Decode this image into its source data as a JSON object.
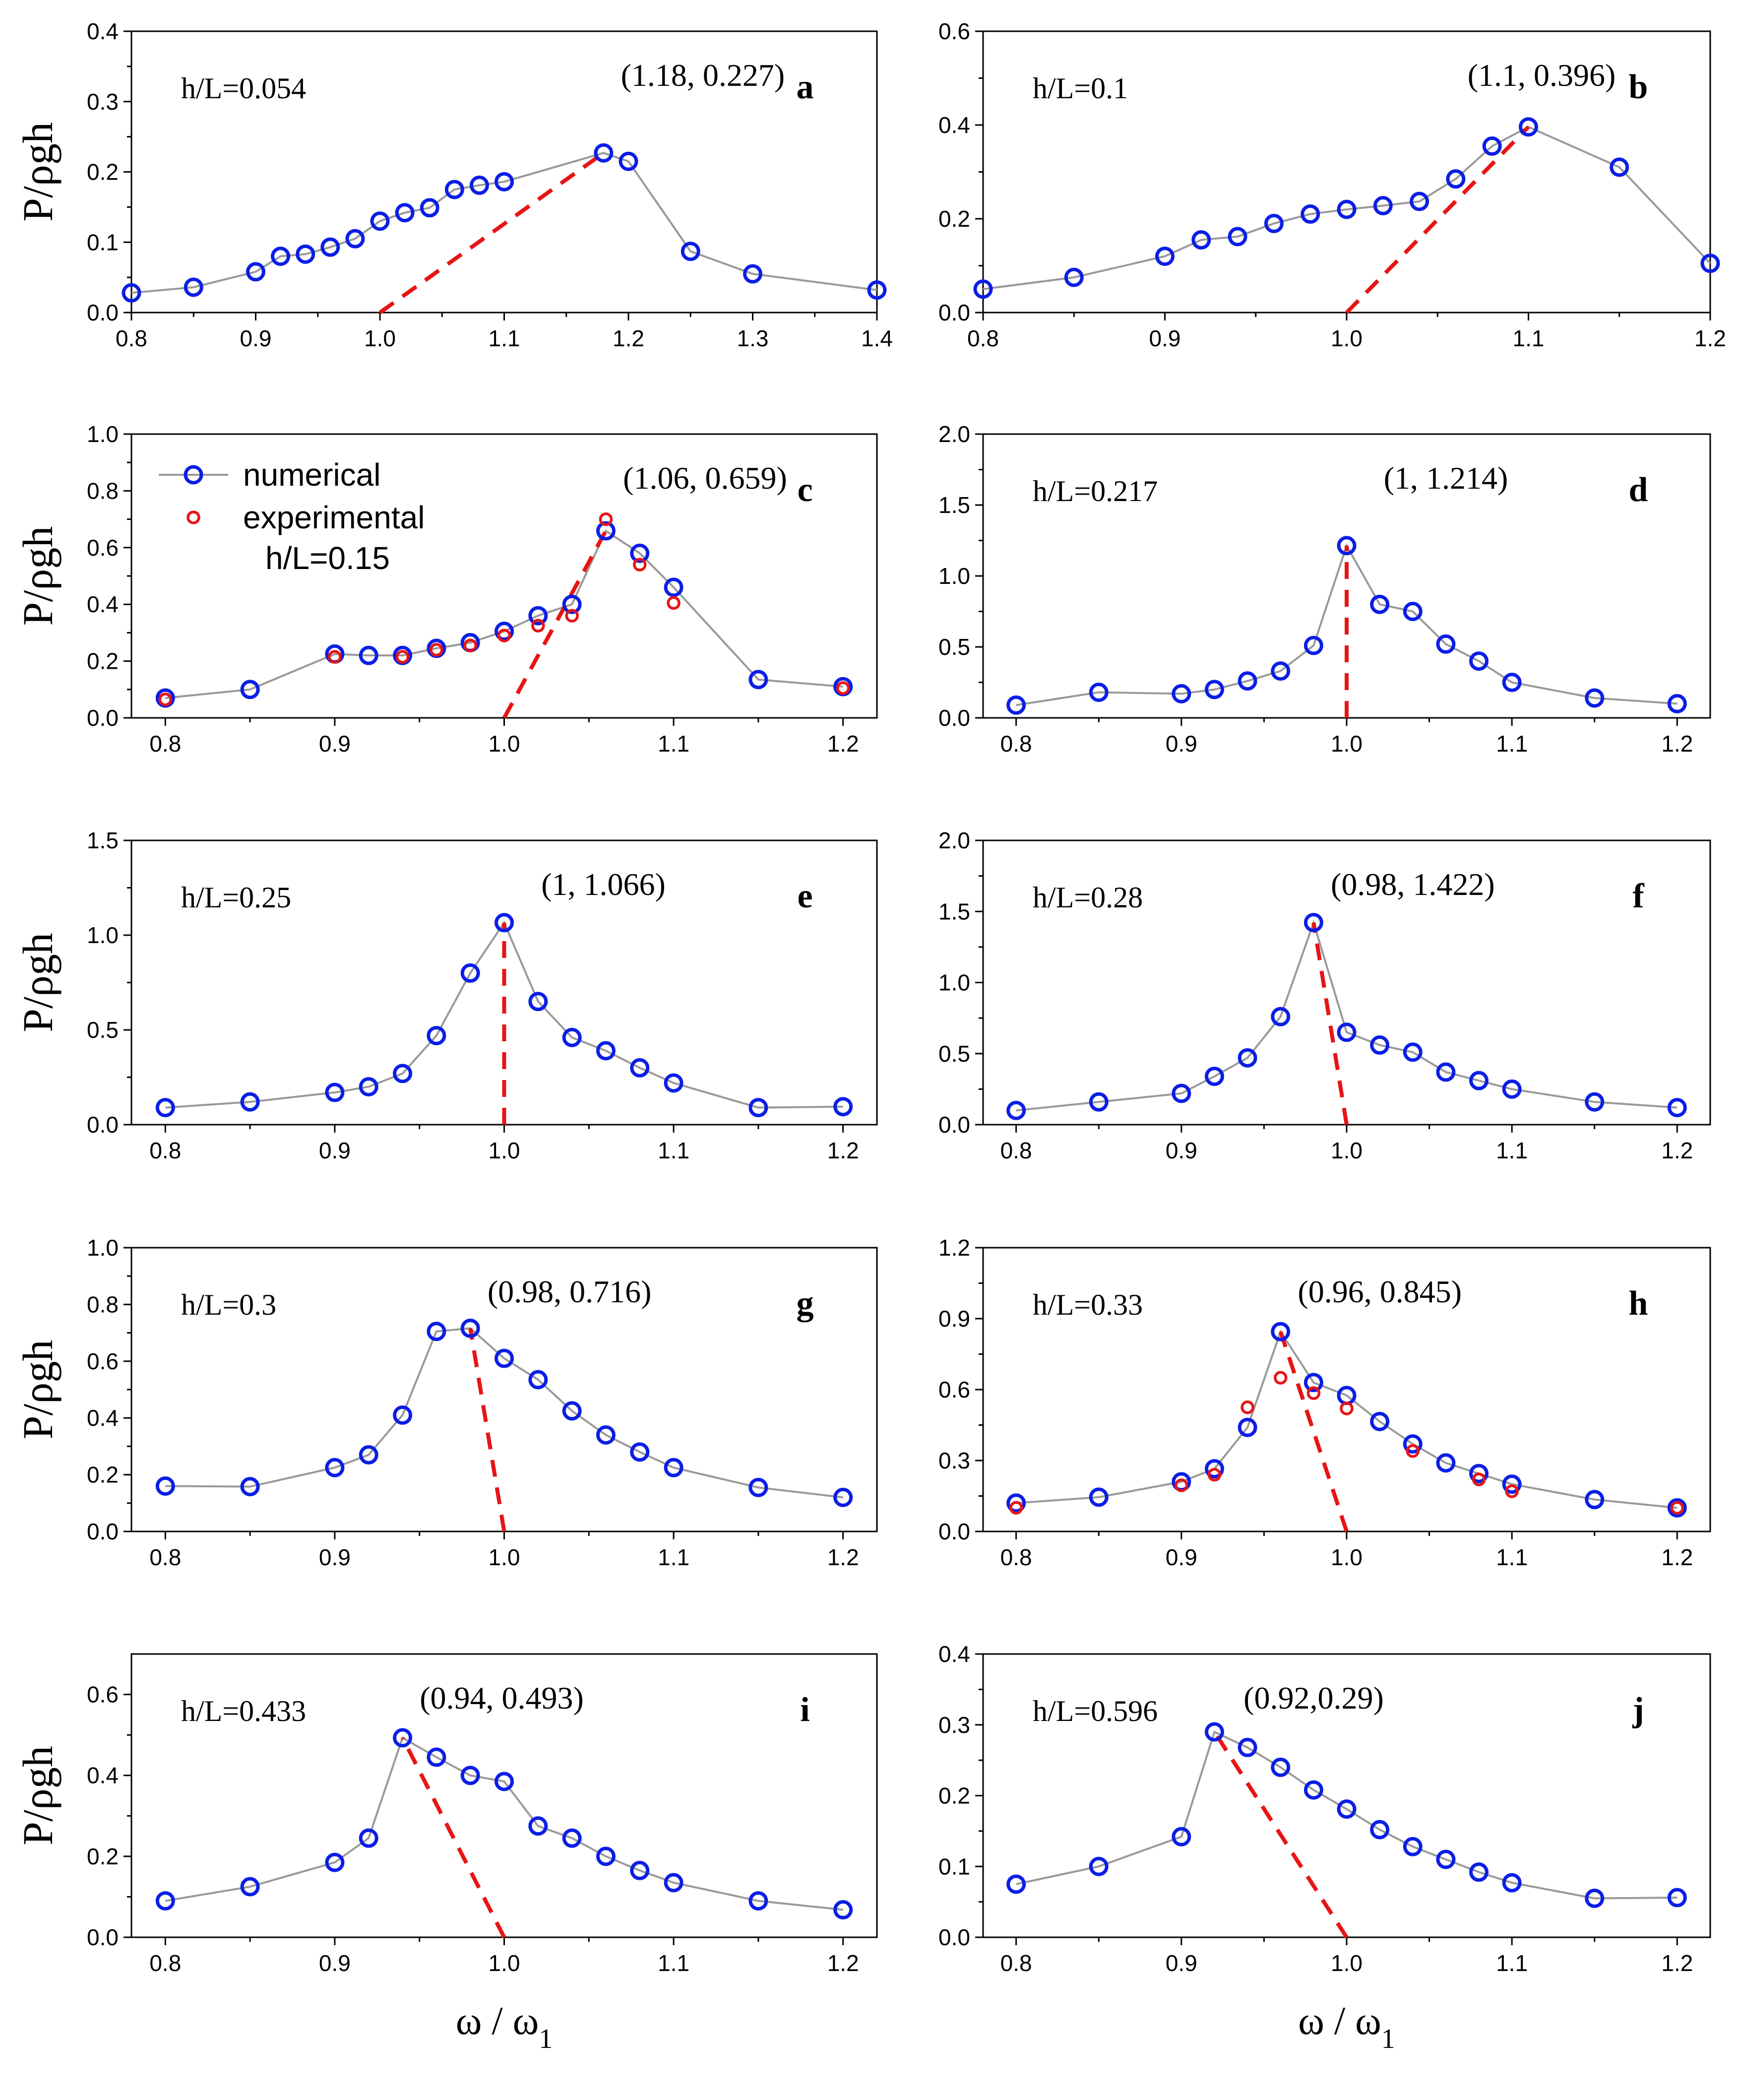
{
  "chart_data": [
    {
      "id": "a",
      "type": "line",
      "panel_label": "a",
      "hl_text": "h/L=0.054",
      "annotation": "(1.18, 0.227)",
      "ylabel": "P/ρgh",
      "xlim": [
        0.8,
        1.4
      ],
      "ylim": [
        0.0,
        0.4
      ],
      "xticks": [
        0.8,
        0.9,
        1.0,
        1.1,
        1.2,
        1.3,
        1.4
      ],
      "yticks": [
        0.0,
        0.1,
        0.2,
        0.3,
        0.4
      ],
      "xtick_labels": [
        "0.8",
        "0.9",
        "1.0",
        "1.1",
        "1.2",
        "1.3",
        "1.4"
      ],
      "ytick_labels": [
        "0.0",
        "0.1",
        "0.2",
        "0.3",
        "0.4"
      ],
      "series": [
        {
          "name": "numerical",
          "x": [
            0.8,
            0.85,
            0.9,
            0.92,
            0.94,
            0.96,
            0.98,
            1.0,
            1.02,
            1.04,
            1.06,
            1.08,
            1.1,
            1.18,
            1.2,
            1.25,
            1.3,
            1.4
          ],
          "y": [
            0.028,
            0.036,
            0.058,
            0.08,
            0.083,
            0.093,
            0.105,
            0.13,
            0.142,
            0.149,
            0.175,
            0.181,
            0.186,
            0.227,
            0.215,
            0.087,
            0.055,
            0.032
          ]
        }
      ],
      "dashed_line": {
        "x": [
          1.0,
          1.18
        ],
        "y": [
          0.0,
          0.227
        ]
      }
    },
    {
      "id": "b",
      "type": "line",
      "panel_label": "b",
      "hl_text": "h/L=0.1",
      "annotation": "(1.1, 0.396)",
      "ylabel": "",
      "xlim": [
        0.8,
        1.2
      ],
      "ylim": [
        0.0,
        0.6
      ],
      "xticks": [
        0.8,
        0.9,
        1.0,
        1.1,
        1.2
      ],
      "yticks": [
        0.0,
        0.2,
        0.4,
        0.6
      ],
      "xtick_labels": [
        "0.8",
        "0.9",
        "1.0",
        "1.1",
        "1.2"
      ],
      "ytick_labels": [
        "0.0",
        "0.2",
        "0.4",
        "0.6"
      ],
      "series": [
        {
          "name": "numerical",
          "x": [
            0.8,
            0.85,
            0.9,
            0.92,
            0.94,
            0.96,
            0.98,
            1.0,
            1.02,
            1.04,
            1.06,
            1.08,
            1.1,
            1.15,
            1.2
          ],
          "y": [
            0.05,
            0.075,
            0.12,
            0.155,
            0.162,
            0.19,
            0.21,
            0.22,
            0.228,
            0.237,
            0.285,
            0.355,
            0.396,
            0.31,
            0.105
          ]
        }
      ],
      "dashed_line": {
        "x": [
          1.0,
          1.1
        ],
        "y": [
          0.0,
          0.396
        ]
      }
    },
    {
      "id": "c",
      "type": "line",
      "panel_label": "c",
      "hl_text": "h/L=0.15",
      "annotation": "(1.06, 0.659)",
      "ylabel": "P/ρgh",
      "xlim": [
        0.78,
        1.22
      ],
      "ylim": [
        0.0,
        1.0
      ],
      "xticks": [
        0.8,
        0.9,
        1.0,
        1.1,
        1.2
      ],
      "yticks": [
        0.0,
        0.2,
        0.4,
        0.6,
        0.8,
        1.0
      ],
      "xtick_labels": [
        "0.8",
        "0.9",
        "1.0",
        "1.1",
        "1.2"
      ],
      "ytick_labels": [
        "0.0",
        "0.2",
        "0.4",
        "0.6",
        "0.8",
        "1.0"
      ],
      "legend": {
        "numerical": "numerical",
        "experimental": "experimental"
      },
      "series": [
        {
          "name": "numerical",
          "x": [
            0.8,
            0.85,
            0.9,
            0.92,
            0.94,
            0.96,
            0.98,
            1.0,
            1.02,
            1.04,
            1.06,
            1.08,
            1.1,
            1.15,
            1.2
          ],
          "y": [
            0.07,
            0.1,
            0.225,
            0.22,
            0.22,
            0.245,
            0.265,
            0.305,
            0.36,
            0.4,
            0.659,
            0.58,
            0.46,
            0.135,
            0.11
          ]
        },
        {
          "name": "experimental",
          "x": [
            0.8,
            0.9,
            0.94,
            0.96,
            0.98,
            1.0,
            1.02,
            1.04,
            1.06,
            1.08,
            1.1,
            1.2
          ],
          "y": [
            0.065,
            0.215,
            0.215,
            0.24,
            0.255,
            0.29,
            0.325,
            0.36,
            0.7,
            0.54,
            0.405,
            0.105
          ]
        }
      ],
      "dashed_line": {
        "x": [
          1.0,
          1.06
        ],
        "y": [
          0.0,
          0.659
        ]
      }
    },
    {
      "id": "d",
      "type": "line",
      "panel_label": "d",
      "hl_text": "h/L=0.217",
      "annotation": "(1, 1.214)",
      "ylabel": "",
      "xlim": [
        0.78,
        1.22
      ],
      "ylim": [
        0.0,
        2.0
      ],
      "xticks": [
        0.8,
        0.9,
        1.0,
        1.1,
        1.2
      ],
      "yticks": [
        0.0,
        0.5,
        1.0,
        1.5,
        2.0
      ],
      "xtick_labels": [
        "0.8",
        "0.9",
        "1.0",
        "1.1",
        "1.2"
      ],
      "ytick_labels": [
        "0.0",
        "0.5",
        "1.0",
        "1.5",
        "2.0"
      ],
      "series": [
        {
          "name": "numerical",
          "x": [
            0.8,
            0.85,
            0.9,
            0.92,
            0.94,
            0.96,
            0.98,
            1.0,
            1.02,
            1.04,
            1.06,
            1.08,
            1.1,
            1.15,
            1.2
          ],
          "y": [
            0.09,
            0.18,
            0.17,
            0.2,
            0.26,
            0.33,
            0.51,
            1.214,
            0.8,
            0.75,
            0.52,
            0.4,
            0.25,
            0.14,
            0.1
          ]
        }
      ],
      "dashed_line": {
        "x": [
          1.0,
          1.0
        ],
        "y": [
          0.0,
          1.214
        ]
      }
    },
    {
      "id": "e",
      "type": "line",
      "panel_label": "e",
      "hl_text": "h/L=0.25",
      "annotation": "(1, 1.066)",
      "ylabel": "P/ρgh",
      "xlim": [
        0.78,
        1.22
      ],
      "ylim": [
        0.0,
        1.5
      ],
      "xticks": [
        0.8,
        0.9,
        1.0,
        1.1,
        1.2
      ],
      "yticks": [
        0.0,
        0.5,
        1.0,
        1.5
      ],
      "xtick_labels": [
        "0.8",
        "0.9",
        "1.0",
        "1.1",
        "1.2"
      ],
      "ytick_labels": [
        "0.0",
        "0.5",
        "1.0",
        "1.5"
      ],
      "series": [
        {
          "name": "numerical",
          "x": [
            0.8,
            0.85,
            0.9,
            0.92,
            0.94,
            0.96,
            0.98,
            1.0,
            1.02,
            1.04,
            1.06,
            1.08,
            1.1,
            1.15,
            1.2
          ],
          "y": [
            0.09,
            0.12,
            0.17,
            0.2,
            0.27,
            0.47,
            0.8,
            1.066,
            0.65,
            0.46,
            0.39,
            0.3,
            0.22,
            0.09,
            0.095
          ]
        }
      ],
      "dashed_line": {
        "x": [
          1.0,
          1.0
        ],
        "y": [
          0.0,
          1.066
        ]
      }
    },
    {
      "id": "f",
      "type": "line",
      "panel_label": "f",
      "hl_text": "h/L=0.28",
      "annotation": "(0.98, 1.422)",
      "ylabel": "",
      "xlim": [
        0.78,
        1.22
      ],
      "ylim": [
        0.0,
        2.0
      ],
      "xticks": [
        0.8,
        0.9,
        1.0,
        1.1,
        1.2
      ],
      "yticks": [
        0.0,
        0.5,
        1.0,
        1.5,
        2.0
      ],
      "xtick_labels": [
        "0.8",
        "0.9",
        "1.0",
        "1.1",
        "1.2"
      ],
      "ytick_labels": [
        "0.0",
        "0.5",
        "1.0",
        "1.5",
        "2.0"
      ],
      "series": [
        {
          "name": "numerical",
          "x": [
            0.8,
            0.85,
            0.9,
            0.92,
            0.94,
            0.96,
            0.98,
            1.0,
            1.02,
            1.04,
            1.06,
            1.08,
            1.1,
            1.15,
            1.2
          ],
          "y": [
            0.1,
            0.16,
            0.22,
            0.34,
            0.47,
            0.76,
            1.422,
            0.65,
            0.56,
            0.51,
            0.37,
            0.31,
            0.25,
            0.16,
            0.12
          ]
        }
      ],
      "dashed_line": {
        "x": [
          1.0,
          0.98
        ],
        "y": [
          0.0,
          1.422
        ]
      }
    },
    {
      "id": "g",
      "type": "line",
      "panel_label": "g",
      "hl_text": "h/L=0.3",
      "annotation": "(0.98, 0.716)",
      "ylabel": "P/ρgh",
      "xlim": [
        0.78,
        1.22
      ],
      "ylim": [
        0.0,
        1.0
      ],
      "xticks": [
        0.8,
        0.9,
        1.0,
        1.1,
        1.2
      ],
      "yticks": [
        0.0,
        0.2,
        0.4,
        0.6,
        0.8,
        1.0
      ],
      "xtick_labels": [
        "0.8",
        "0.9",
        "1.0",
        "1.1",
        "1.2"
      ],
      "ytick_labels": [
        "0.0",
        "0.2",
        "0.4",
        "0.6",
        "0.8",
        "1.0"
      ],
      "series": [
        {
          "name": "numerical",
          "x": [
            0.8,
            0.85,
            0.9,
            0.92,
            0.94,
            0.96,
            0.98,
            1.0,
            1.02,
            1.04,
            1.06,
            1.08,
            1.1,
            1.15,
            1.2
          ],
          "y": [
            0.16,
            0.158,
            0.225,
            0.27,
            0.41,
            0.705,
            0.716,
            0.61,
            0.535,
            0.425,
            0.34,
            0.28,
            0.225,
            0.155,
            0.12
          ]
        }
      ],
      "dashed_line": {
        "x": [
          1.0,
          0.98
        ],
        "y": [
          0.0,
          0.716
        ]
      }
    },
    {
      "id": "h",
      "type": "line",
      "panel_label": "h",
      "hl_text": "h/L=0.33",
      "annotation": "(0.96, 0.845)",
      "ylabel": "",
      "xlim": [
        0.78,
        1.22
      ],
      "ylim": [
        0.0,
        1.2
      ],
      "xticks": [
        0.8,
        0.9,
        1.0,
        1.1,
        1.2
      ],
      "yticks": [
        0.0,
        0.3,
        0.6,
        0.9,
        1.2
      ],
      "xtick_labels": [
        "0.8",
        "0.9",
        "1.0",
        "1.1",
        "1.2"
      ],
      "ytick_labels": [
        "0.0",
        "0.3",
        "0.6",
        "0.9",
        "1.2"
      ],
      "series": [
        {
          "name": "numerical",
          "x": [
            0.8,
            0.85,
            0.9,
            0.92,
            0.94,
            0.96,
            0.98,
            1.0,
            1.02,
            1.04,
            1.06,
            1.08,
            1.1,
            1.15,
            1.2
          ],
          "y": [
            0.12,
            0.145,
            0.21,
            0.265,
            0.44,
            0.845,
            0.63,
            0.575,
            0.465,
            0.37,
            0.29,
            0.245,
            0.2,
            0.135,
            0.1
          ]
        },
        {
          "name": "experimental",
          "x": [
            0.8,
            0.9,
            0.92,
            0.94,
            0.96,
            0.98,
            1.0,
            1.04,
            1.08,
            1.1,
            1.2
          ],
          "y": [
            0.1,
            0.195,
            0.24,
            0.525,
            0.65,
            0.585,
            0.52,
            0.34,
            0.22,
            0.17,
            0.1
          ]
        }
      ],
      "dashed_line": {
        "x": [
          1.0,
          0.96
        ],
        "y": [
          0.0,
          0.845
        ]
      }
    },
    {
      "id": "i",
      "type": "line",
      "panel_label": "i",
      "hl_text": "h/L=0.433",
      "annotation": "(0.94, 0.493)",
      "ylabel": "P/ρgh",
      "xlabel": "ω / ω1",
      "xlim": [
        0.78,
        1.22
      ],
      "ylim": [
        0.0,
        0.7
      ],
      "xticks": [
        0.8,
        0.9,
        1.0,
        1.1,
        1.2
      ],
      "yticks": [
        0.0,
        0.2,
        0.4,
        0.6
      ],
      "xtick_labels": [
        "0.8",
        "0.9",
        "1.0",
        "1.1",
        "1.2"
      ],
      "ytick_labels": [
        "0.0",
        "0.2",
        "0.4",
        "0.6"
      ],
      "series": [
        {
          "name": "numerical",
          "x": [
            0.8,
            0.85,
            0.9,
            0.92,
            0.94,
            0.96,
            0.98,
            1.0,
            1.02,
            1.04,
            1.06,
            1.08,
            1.1,
            1.15,
            1.2
          ],
          "y": [
            0.09,
            0.125,
            0.185,
            0.245,
            0.493,
            0.445,
            0.4,
            0.385,
            0.275,
            0.245,
            0.2,
            0.165,
            0.135,
            0.09,
            0.068
          ]
        }
      ],
      "dashed_line": {
        "x": [
          1.0,
          0.94
        ],
        "y": [
          0.0,
          0.493
        ]
      }
    },
    {
      "id": "j",
      "type": "line",
      "panel_label": "j",
      "hl_text": "h/L=0.596",
      "annotation": "(0.92,0.29)",
      "ylabel": "",
      "xlabel": "ω / ω1",
      "xlim": [
        0.78,
        1.22
      ],
      "ylim": [
        0.0,
        0.4
      ],
      "xticks": [
        0.8,
        0.9,
        1.0,
        1.1,
        1.2
      ],
      "yticks": [
        0.0,
        0.1,
        0.2,
        0.3,
        0.4
      ],
      "xtick_labels": [
        "0.8",
        "0.9",
        "1.0",
        "1.1",
        "1.2"
      ],
      "ytick_labels": [
        "0.0",
        "0.1",
        "0.2",
        "0.3",
        "0.4"
      ],
      "series": [
        {
          "name": "numerical",
          "x": [
            0.8,
            0.85,
            0.9,
            0.92,
            0.94,
            0.96,
            0.98,
            1.0,
            1.02,
            1.04,
            1.06,
            1.08,
            1.1,
            1.15,
            1.2
          ],
          "y": [
            0.075,
            0.1,
            0.142,
            0.29,
            0.268,
            0.24,
            0.208,
            0.181,
            0.152,
            0.128,
            0.11,
            0.092,
            0.077,
            0.055,
            0.056
          ]
        }
      ],
      "dashed_line": {
        "x": [
          1.0,
          0.92
        ],
        "y": [
          0.0,
          0.29
        ]
      }
    }
  ]
}
